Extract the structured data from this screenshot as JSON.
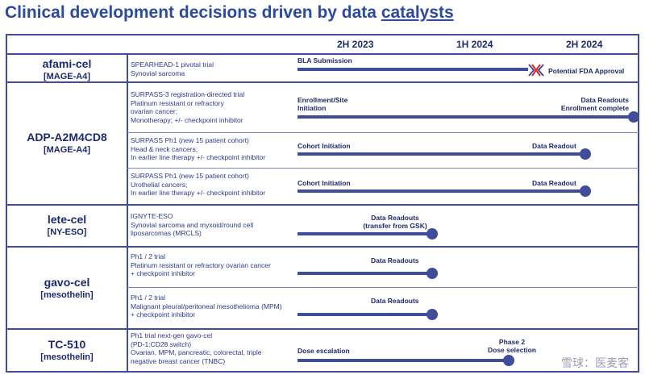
{
  "title": {
    "main": "Clinical development decisions driven by data ",
    "underlined": "catalysts"
  },
  "header": {
    "col1": "2H 2023",
    "col2": "1H 2024",
    "col3": "2H 2024"
  },
  "rows": {
    "afami": {
      "name": "afami-cel",
      "target": "[MAGE-A4]",
      "desc": [
        "SPEARHEAD-1 pivotal trial",
        "Synovial sarcoma"
      ],
      "bar_label": "BLA Submission",
      "approval_label": "Potential FDA Approval"
    },
    "adp": {
      "name": "ADP-A2M4CD8",
      "target": "[MAGE-A4]",
      "t1_desc": [
        "SURPASS-3 registration-directed trial",
        "Platinum resistant or refractory",
        "ovarian cancer;",
        "Monotherapy; +/- checkpoint inhibitor"
      ],
      "t1_start": [
        "Enrollment/Site",
        "Initiation"
      ],
      "t1_end": [
        "Data Readouts",
        "Enrollment complete"
      ],
      "t2_desc": [
        "SURPASS Ph1 (new 15 patient cohort)",
        "Head & neck cancers;",
        "In earlier line therapy +/- checkpoint inhibitor"
      ],
      "t2_start": "Cohort Initiation",
      "t2_end": "Data Readout",
      "t3_desc": [
        "SURPASS Ph1 (new 15 patient cohort)",
        "Urothelial cancers;",
        "In earlier line therapy +/- checkpoint inhibitor"
      ],
      "t3_start": "Cohort Initiation",
      "t3_end": "Data Readout"
    },
    "lete": {
      "name": "lete-cel",
      "target": "[NY-ESO]",
      "desc": [
        "IGNYTE-ESO",
        "Synovial sarcoma and myxoid/round cell",
        "liposarcomas (MRCLS)"
      ],
      "end": [
        "Data Readouts",
        "(transfer from GSK)"
      ]
    },
    "gavo": {
      "name": "gavo-cel",
      "target": "[mesothelin]",
      "t1_desc": [
        "Ph1 / 2 trial",
        "Platinum resistant or refractory ovarian cancer",
        "+ checkpoint inhibitor"
      ],
      "t1_end": "Data Readouts",
      "t2_desc": [
        "Ph1 / 2 trial",
        "Malignant pleural/peritoneal mesothelioma (MPM)",
        "+ checkpoint inhibitor"
      ],
      "t2_end": "Data Readouts"
    },
    "tc510": {
      "name": "TC-510",
      "target": "[mesothelin]",
      "desc": [
        "Ph1 trial next-gen gavo-cel",
        "(PD-1:CD28 switch)",
        "Ovarian, MPM, pancreatic, colorectal, triple",
        "negative breast cancer (TNBC)"
      ],
      "start": "Dose escalation",
      "end": [
        "Phase 2",
        "Dose selection"
      ]
    }
  },
  "watermark": "雪球：医麦客",
  "colors": {
    "primary": "#3f4d9a",
    "title": "#2b4aa0",
    "text": "#1d2a70"
  }
}
